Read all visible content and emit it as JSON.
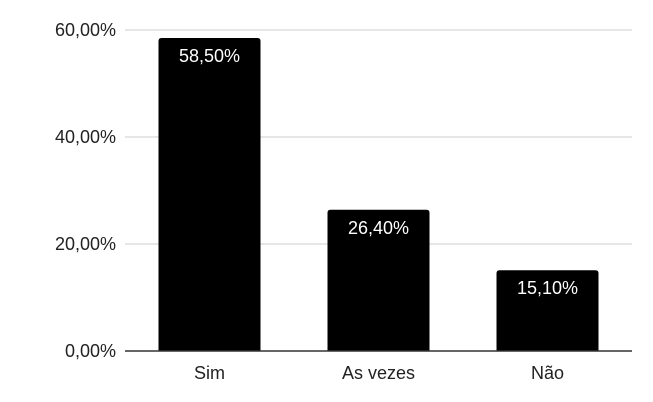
{
  "chart_data": {
    "type": "bar",
    "categories": [
      "Sim",
      "As vezes",
      "Não"
    ],
    "values": [
      58.5,
      26.4,
      15.1
    ],
    "data_labels": [
      "58,50%",
      "26,40%",
      "15,10%"
    ],
    "yticks": [
      {
        "value": 0,
        "label": "0,00%"
      },
      {
        "value": 20,
        "label": "20,00%"
      },
      {
        "value": 40,
        "label": "40,00%"
      },
      {
        "value": 60,
        "label": "60,00%"
      }
    ],
    "ylim": [
      0,
      60
    ],
    "grid": true,
    "title": "",
    "xlabel": "",
    "ylabel": "",
    "colors": {
      "bar": "#000000",
      "grid": "#cccccc",
      "axis": "#333333",
      "data_label": "#ffffff",
      "text": "#222222"
    }
  }
}
